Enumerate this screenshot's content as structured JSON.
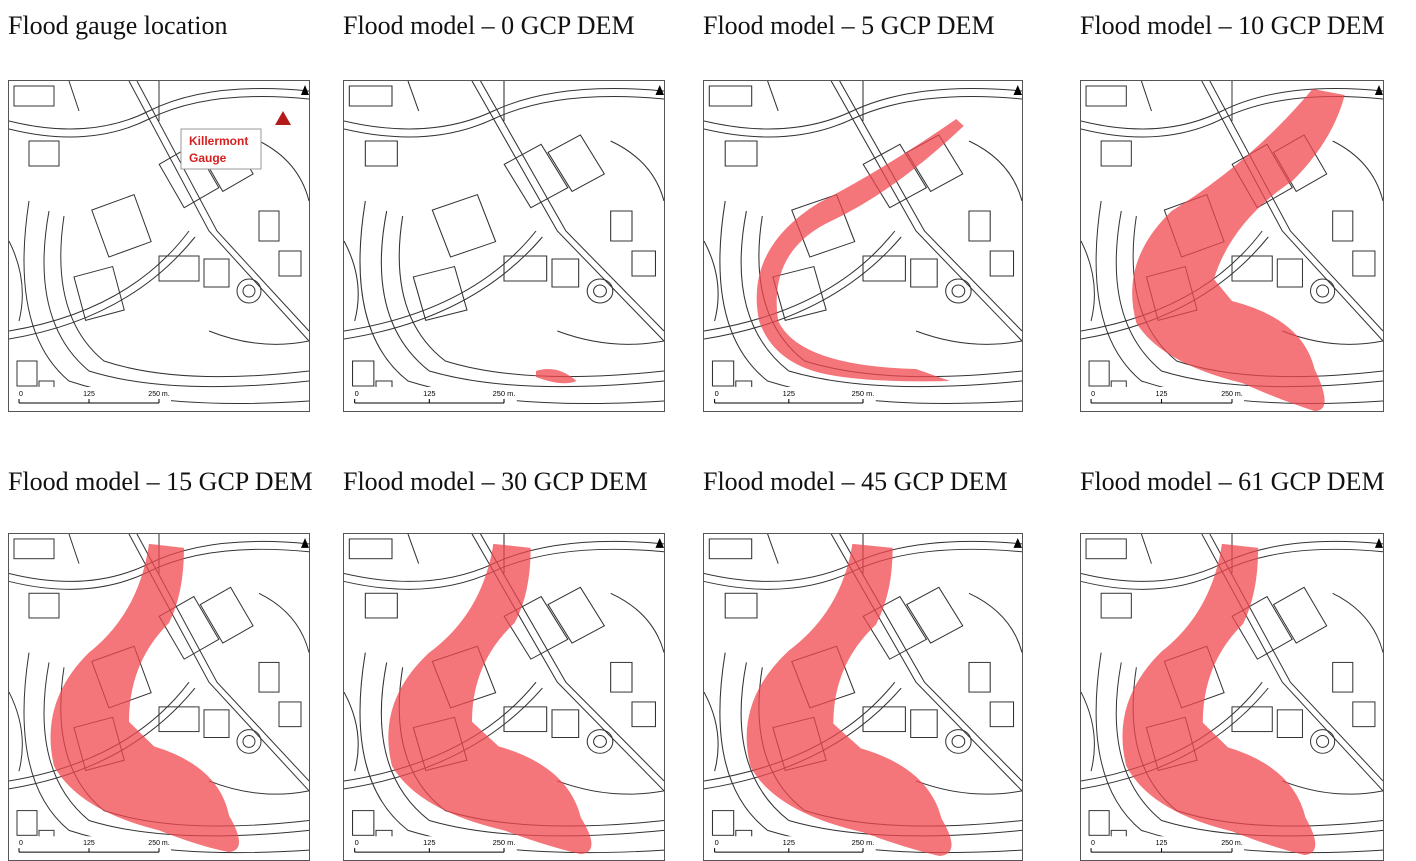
{
  "panels": [
    {
      "title": "Flood gauge location",
      "gauge_label": [
        "Killermont",
        "Gauge"
      ],
      "scale_labels": [
        "0",
        "125",
        "250 m."
      ]
    },
    {
      "title": "Flood model – 0 GCP DEM",
      "scale_labels": [
        "0",
        "125",
        "250 m."
      ]
    },
    {
      "title": "Flood model – 5 GCP DEM",
      "scale_labels": [
        "0",
        "125",
        "250 m."
      ]
    },
    {
      "title": "Flood model – 10 GCP DEM",
      "scale_labels": [
        "0",
        "125",
        "250 m."
      ]
    },
    {
      "title": "Flood model – 15 GCP DEM",
      "scale_labels": [
        "0",
        "125",
        "250 m."
      ]
    },
    {
      "title": "Flood model – 30 GCP DEM",
      "scale_labels": [
        "0",
        "125",
        "250 m."
      ]
    },
    {
      "title": "Flood model – 45 GCP DEM",
      "scale_labels": [
        "0",
        "125",
        "250 m."
      ]
    },
    {
      "title": "Flood model – 61 GCP DEM",
      "scale_labels": [
        "0",
        "125",
        "250 m."
      ]
    }
  ]
}
